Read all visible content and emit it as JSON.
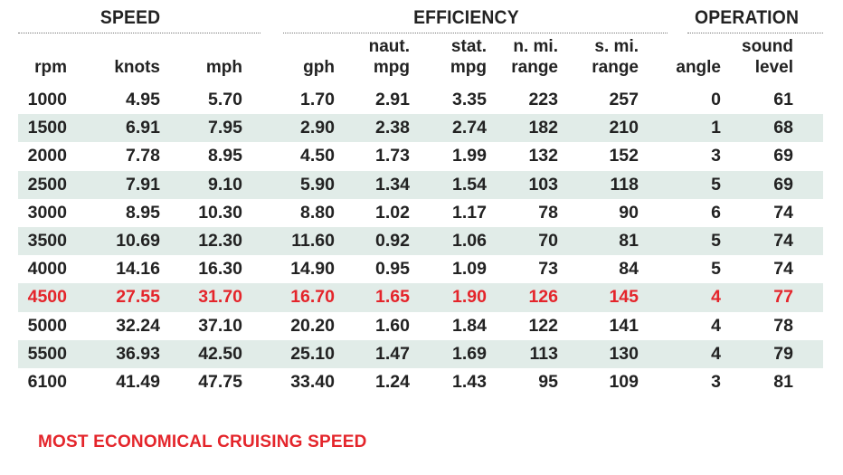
{
  "groups": {
    "speed": "SPEED",
    "efficiency": "EFFICIENCY",
    "operation": "OPERATION"
  },
  "columns": [
    {
      "line1": "",
      "line2": "rpm"
    },
    {
      "line1": "",
      "line2": "knots"
    },
    {
      "line1": "",
      "line2": "mph"
    },
    {
      "line1": "",
      "line2": "gph"
    },
    {
      "line1": "naut.",
      "line2": "mpg"
    },
    {
      "line1": "stat.",
      "line2": "mpg"
    },
    {
      "line1": "n. mi.",
      "line2": "range"
    },
    {
      "line1": "s. mi.",
      "line2": "range"
    },
    {
      "line1": "",
      "line2": "angle"
    },
    {
      "line1": "sound",
      "line2": "level"
    }
  ],
  "rows": [
    [
      "1000",
      "4.95",
      "5.70",
      "1.70",
      "2.91",
      "3.35",
      "223",
      "257",
      "0",
      "61"
    ],
    [
      "1500",
      "6.91",
      "7.95",
      "2.90",
      "2.38",
      "2.74",
      "182",
      "210",
      "1",
      "68"
    ],
    [
      "2000",
      "7.78",
      "8.95",
      "4.50",
      "1.73",
      "1.99",
      "132",
      "152",
      "3",
      "69"
    ],
    [
      "2500",
      "7.91",
      "9.10",
      "5.90",
      "1.34",
      "1.54",
      "103",
      "118",
      "5",
      "69"
    ],
    [
      "3000",
      "8.95",
      "10.30",
      "8.80",
      "1.02",
      "1.17",
      "78",
      "90",
      "6",
      "74"
    ],
    [
      "3500",
      "10.69",
      "12.30",
      "11.60",
      "0.92",
      "1.06",
      "70",
      "81",
      "5",
      "74"
    ],
    [
      "4000",
      "14.16",
      "16.30",
      "14.90",
      "0.95",
      "1.09",
      "73",
      "84",
      "5",
      "74"
    ],
    [
      "4500",
      "27.55",
      "31.70",
      "16.70",
      "1.65",
      "1.90",
      "126",
      "145",
      "4",
      "77"
    ],
    [
      "5000",
      "32.24",
      "37.10",
      "20.20",
      "1.60",
      "1.84",
      "122",
      "141",
      "4",
      "78"
    ],
    [
      "5500",
      "36.93",
      "42.50",
      "25.10",
      "1.47",
      "1.69",
      "113",
      "130",
      "4",
      "79"
    ],
    [
      "6100",
      "41.49",
      "47.75",
      "33.40",
      "1.24",
      "1.43",
      "95",
      "109",
      "3",
      "81"
    ]
  ],
  "highlight_row_index": 7,
  "footnote": "MOST ECONOMICAL CRUISING SPEED",
  "colors": {
    "highlight": "#e4252b",
    "row_shade": "#e1ece8",
    "text": "#222222"
  }
}
